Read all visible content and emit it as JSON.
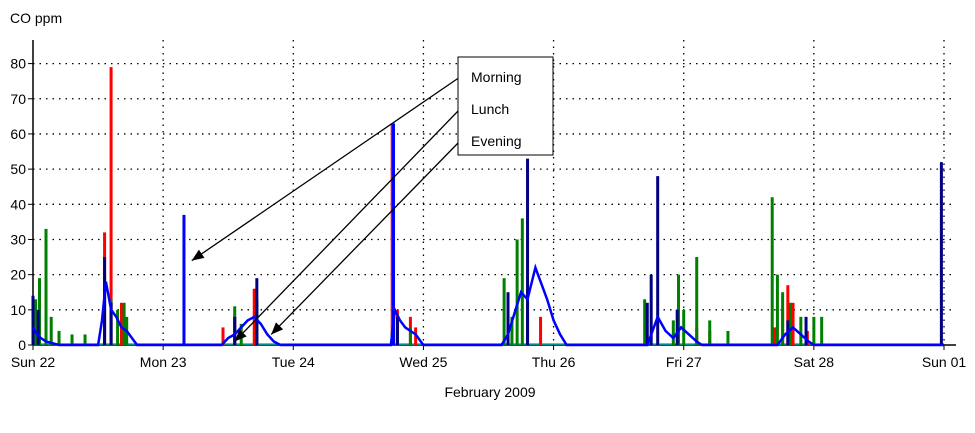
{
  "chart_data": {
    "type": "line",
    "ylabel": "CO ppm",
    "xlabel": "February 2009",
    "ylim": [
      0,
      85
    ],
    "yticks": [
      0,
      10,
      20,
      30,
      40,
      50,
      60,
      70,
      80
    ],
    "xlim": [
      0,
      7
    ],
    "x_unit": "days since Sun 22",
    "xticks": [
      {
        "x": 0,
        "label": "Sun 22"
      },
      {
        "x": 1,
        "label": "Mon 23"
      },
      {
        "x": 2,
        "label": "Tue 24"
      },
      {
        "x": 3,
        "label": "Wed 25"
      },
      {
        "x": 4,
        "label": "Thu 26"
      },
      {
        "x": 5,
        "label": "Fri 27"
      },
      {
        "x": 6,
        "label": "Sat 28"
      },
      {
        "x": 7,
        "label": "Sun 01"
      }
    ],
    "grid": true,
    "colors": {
      "red": "#ff0000",
      "green": "#008000",
      "blue": "#0000ff",
      "navy": "#000080",
      "cyan": "#00c0c0"
    },
    "series": [
      {
        "color": "#ff0000",
        "spikes": [
          [
            0.02,
            10
          ],
          [
            0.04,
            8
          ],
          [
            0.55,
            32
          ],
          [
            0.6,
            79
          ],
          [
            0.68,
            12
          ],
          [
            1.46,
            5
          ],
          [
            1.55,
            8
          ],
          [
            1.7,
            16
          ],
          [
            1.72,
            13
          ],
          [
            2.76,
            63
          ],
          [
            2.8,
            10
          ],
          [
            2.9,
            8
          ],
          [
            2.94,
            5
          ],
          [
            3.9,
            8
          ],
          [
            5.1,
            5
          ],
          [
            5.2,
            4
          ],
          [
            5.7,
            5
          ],
          [
            5.76,
            10
          ],
          [
            5.8,
            17
          ],
          [
            5.84,
            12
          ],
          [
            5.95,
            4
          ]
        ]
      },
      {
        "color": "#008000",
        "spikes": [
          [
            0.02,
            13
          ],
          [
            0.05,
            19
          ],
          [
            0.1,
            33
          ],
          [
            0.14,
            8
          ],
          [
            0.2,
            4
          ],
          [
            0.3,
            3
          ],
          [
            0.4,
            3
          ],
          [
            0.55,
            20
          ],
          [
            0.6,
            13
          ],
          [
            0.65,
            10
          ],
          [
            0.7,
            12
          ],
          [
            0.72,
            8
          ],
          [
            1.55,
            11
          ],
          [
            1.6,
            6
          ],
          [
            1.72,
            12
          ],
          [
            2.76,
            4
          ],
          [
            2.8,
            4
          ],
          [
            2.9,
            5
          ],
          [
            3.62,
            19
          ],
          [
            3.68,
            8
          ],
          [
            3.72,
            30
          ],
          [
            3.76,
            36
          ],
          [
            3.8,
            12
          ],
          [
            4.7,
            13
          ],
          [
            4.92,
            7
          ],
          [
            4.96,
            20
          ],
          [
            5.0,
            10
          ],
          [
            5.1,
            25
          ],
          [
            5.2,
            7
          ],
          [
            5.34,
            4
          ],
          [
            5.68,
            42
          ],
          [
            5.72,
            20
          ],
          [
            5.76,
            15
          ],
          [
            5.82,
            12
          ],
          [
            5.9,
            8
          ],
          [
            6.0,
            8
          ],
          [
            6.06,
            8
          ]
        ]
      },
      {
        "color": "#0000ff",
        "spikes": [
          [
            1.16,
            37
          ],
          [
            2.77,
            63
          ]
        ]
      },
      {
        "color": "#000080",
        "spikes": [
          [
            0.0,
            14
          ],
          [
            0.04,
            10
          ],
          [
            0.55,
            25
          ],
          [
            0.6,
            12
          ],
          [
            1.55,
            8
          ],
          [
            1.72,
            19
          ],
          [
            2.8,
            8
          ],
          [
            3.65,
            15
          ],
          [
            3.8,
            53
          ],
          [
            4.72,
            12
          ],
          [
            4.75,
            20
          ],
          [
            4.8,
            48
          ],
          [
            4.95,
            10
          ],
          [
            5.8,
            7
          ],
          [
            5.94,
            8
          ],
          [
            6.98,
            52
          ]
        ]
      },
      {
        "color": "#0000ff",
        "profile": [
          [
            0.0,
            5
          ],
          [
            0.03,
            3
          ],
          [
            0.06,
            2
          ],
          [
            0.1,
            1
          ],
          [
            0.2,
            0
          ],
          [
            0.5,
            0
          ],
          [
            0.53,
            7
          ],
          [
            0.56,
            18
          ],
          [
            0.6,
            10
          ],
          [
            0.64,
            8
          ],
          [
            0.68,
            5
          ],
          [
            0.72,
            4
          ],
          [
            0.76,
            2
          ],
          [
            0.8,
            0
          ],
          [
            1.45,
            0
          ],
          [
            1.5,
            2
          ],
          [
            1.55,
            3
          ],
          [
            1.6,
            5
          ],
          [
            1.65,
            7
          ],
          [
            1.7,
            8
          ],
          [
            1.75,
            6
          ],
          [
            1.8,
            3
          ],
          [
            1.85,
            1
          ],
          [
            1.9,
            0
          ],
          [
            2.75,
            0
          ],
          [
            2.78,
            10
          ],
          [
            2.82,
            7
          ],
          [
            2.86,
            5
          ],
          [
            2.9,
            4
          ],
          [
            2.94,
            3
          ],
          [
            2.98,
            1
          ],
          [
            3.0,
            0
          ],
          [
            3.6,
            0
          ],
          [
            3.65,
            3
          ],
          [
            3.7,
            9
          ],
          [
            3.75,
            15
          ],
          [
            3.8,
            13
          ],
          [
            3.86,
            22
          ],
          [
            3.9,
            18
          ],
          [
            3.95,
            13
          ],
          [
            4.0,
            7
          ],
          [
            4.05,
            3
          ],
          [
            4.1,
            0
          ],
          [
            4.72,
            0
          ],
          [
            4.8,
            8
          ],
          [
            4.86,
            4
          ],
          [
            4.92,
            2
          ],
          [
            4.98,
            5
          ],
          [
            5.04,
            3
          ],
          [
            5.1,
            1
          ],
          [
            5.14,
            0
          ],
          [
            5.72,
            0
          ],
          [
            5.78,
            3
          ],
          [
            5.84,
            5
          ],
          [
            5.9,
            3
          ],
          [
            5.96,
            1
          ],
          [
            6.0,
            0
          ],
          [
            7.0,
            0
          ]
        ]
      }
    ],
    "annotation_box": {
      "labels": [
        "Morning",
        "Lunch",
        "Evening"
      ]
    },
    "arrows": [
      {
        "from_label": "Morning",
        "to": [
          1.22,
          24
        ]
      },
      {
        "from_label": "Lunch",
        "to": [
          1.55,
          1
        ]
      },
      {
        "from_label": "Evening",
        "to": [
          1.83,
          3
        ]
      }
    ]
  }
}
